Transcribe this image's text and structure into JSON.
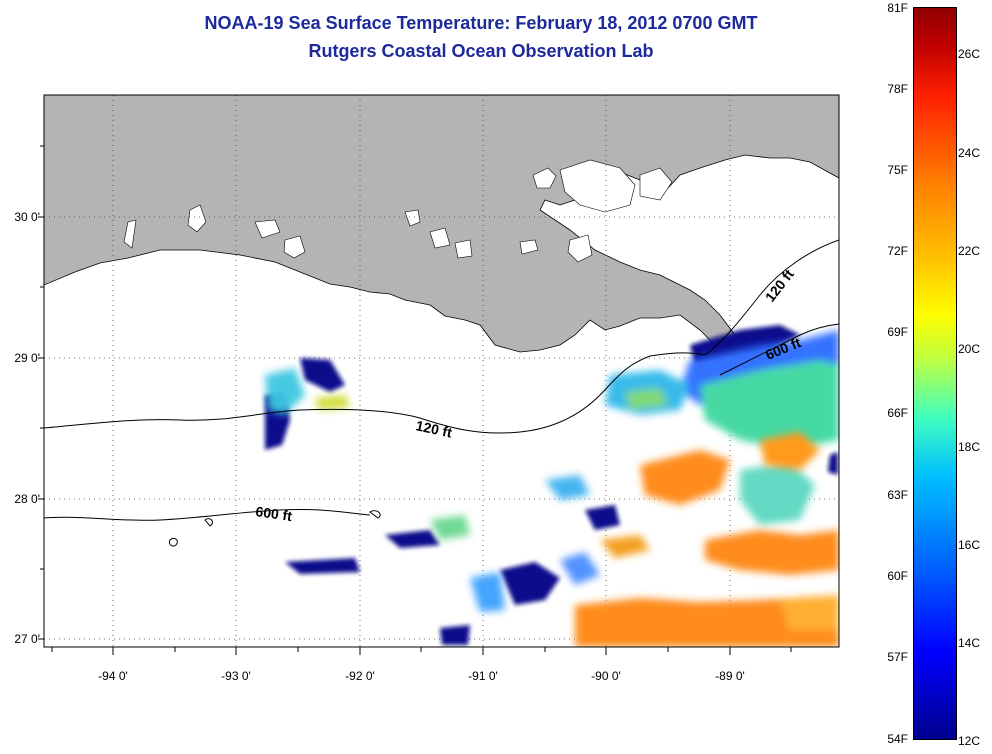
{
  "title": "NOAA-19 Sea Surface Temperature:  February 18, 2012 0700 GMT",
  "subtitle": "Rutgers Coastal Ocean Observation Lab",
  "axes": {
    "lat_labels": [
      "30 0'",
      "29 0'",
      "28 0'",
      "27 0'"
    ],
    "lon_labels": [
      "-94 0'",
      "-93 0'",
      "-92 0'",
      "-91 0'",
      "-90 0'",
      "-89 0'"
    ]
  },
  "contours": {
    "shelf_120": "120 ft",
    "shelf_600": "600 ft",
    "ne_120": "120 ft",
    "ne_600": "600 ft"
  },
  "colorbar": {
    "fahrenheit": [
      "81F",
      "78F",
      "75F",
      "72F",
      "69F",
      "66F",
      "63F",
      "60F",
      "57F",
      "54F"
    ],
    "celsius": [
      "26C",
      "24C",
      "22C",
      "20C",
      "18C",
      "16C",
      "14C",
      "12C"
    ]
  },
  "colors": {
    "land": "#b4b4b4",
    "title": "#1c2a9c",
    "cold": "#0a0a8c",
    "warm": "#ff8c1a"
  }
}
